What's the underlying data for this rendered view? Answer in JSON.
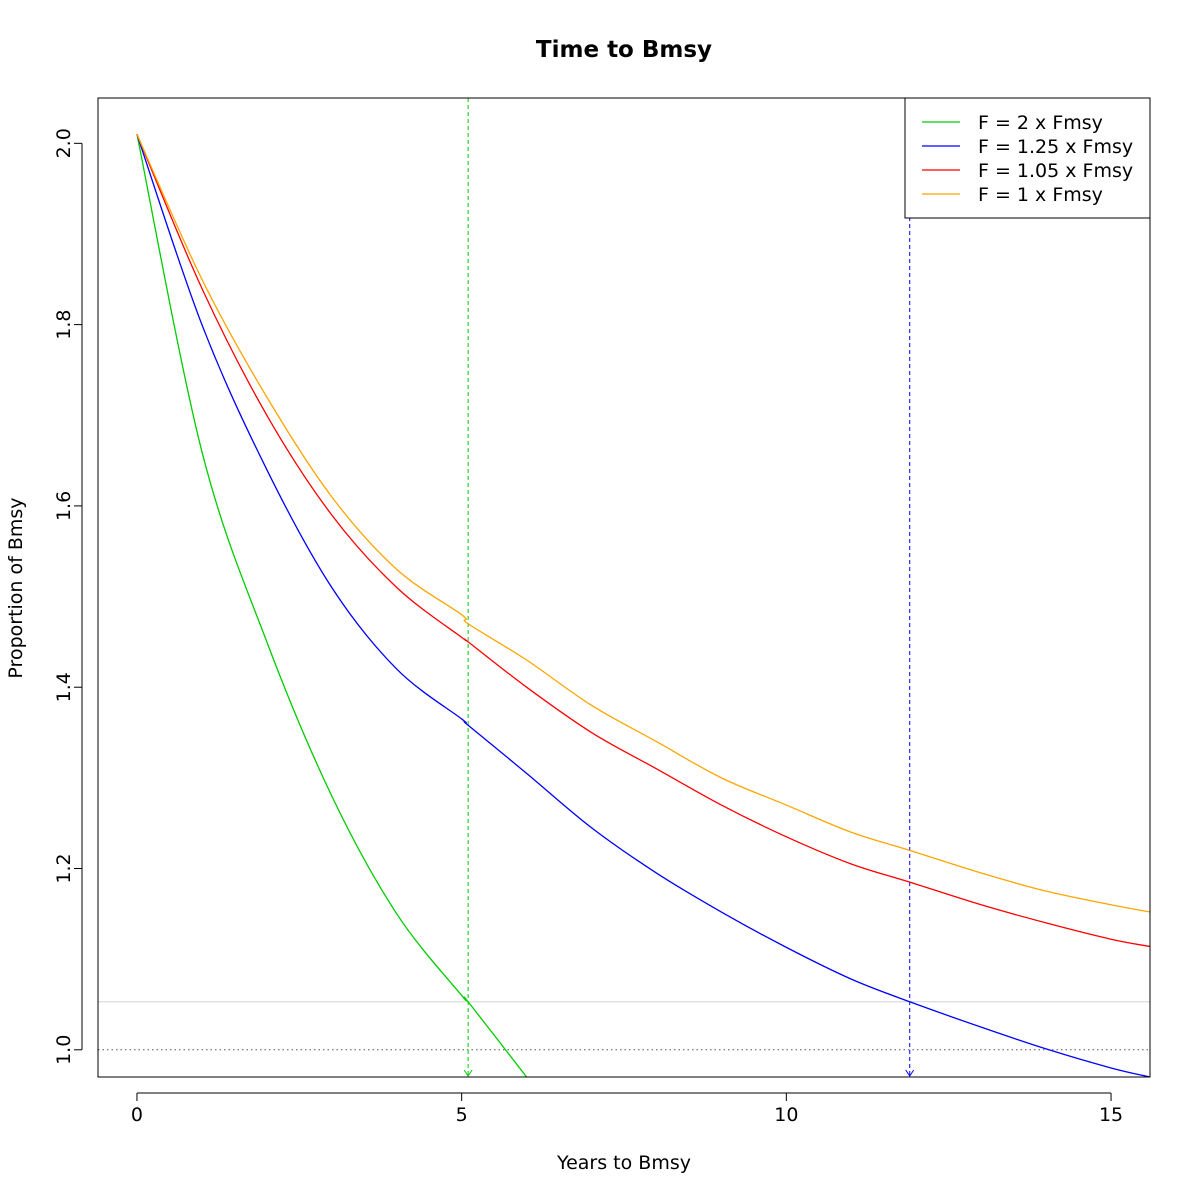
{
  "chart_data": {
    "type": "line",
    "title": "Time to Bmsy",
    "xlabel": "Years to Bmsy",
    "ylabel": "Proportion of Bmsy",
    "xlim": [
      -0.6,
      15.6
    ],
    "ylim": [
      0.97,
      2.05
    ],
    "x_ticks": [
      0,
      5,
      10,
      15
    ],
    "x_tick_labels": [
      "0",
      "5",
      "10",
      "15"
    ],
    "y_ticks": [
      1.0,
      1.2,
      1.4,
      1.6,
      1.8,
      2.0
    ],
    "y_tick_labels": [
      "1.0",
      "1.2",
      "1.4",
      "1.6",
      "1.8",
      "2.0"
    ],
    "grid": false,
    "legend_position": "top-right",
    "x": [
      0,
      1,
      2,
      3,
      4,
      5,
      5.1,
      6,
      7,
      8,
      9,
      10,
      11,
      11.9,
      13,
      14,
      15,
      15.6
    ],
    "series": [
      {
        "name": "F = 2 x Fmsy",
        "color": "#00cd00",
        "values": [
          2.01,
          1.66,
          1.45,
          1.28,
          1.15,
          1.06,
          1.053,
          0.97,
          null,
          null,
          null,
          null,
          null,
          null,
          null,
          null,
          null,
          null
        ]
      },
      {
        "name": "F = 1.25 x Fmsy",
        "color": "#0000ff",
        "values": [
          2.01,
          1.8,
          1.64,
          1.51,
          1.42,
          1.365,
          1.358,
          1.305,
          1.245,
          1.195,
          1.152,
          1.113,
          1.078,
          1.053,
          1.025,
          1.001,
          0.98,
          0.97
        ]
      },
      {
        "name": "F = 1.05 x Fmsy",
        "color": "#ff0000",
        "values": [
          2.01,
          1.84,
          1.7,
          1.59,
          1.51,
          1.455,
          1.45,
          1.4,
          1.35,
          1.31,
          1.27,
          1.235,
          1.205,
          1.185,
          1.16,
          1.14,
          1.122,
          1.114
        ]
      },
      {
        "name": "F = 1 x Fmsy",
        "color": "#ffa500",
        "values": [
          2.01,
          1.85,
          1.72,
          1.61,
          1.53,
          1.48,
          1.47,
          1.43,
          1.38,
          1.34,
          1.3,
          1.27,
          1.24,
          1.22,
          1.195,
          1.175,
          1.16,
          1.152
        ]
      }
    ],
    "reference_lines": [
      {
        "orientation": "horizontal",
        "value": 1.0,
        "style": "dotted",
        "color": "#555555"
      },
      {
        "orientation": "horizontal",
        "value": 1.053,
        "style": "solid",
        "color": "#d3d3d3"
      },
      {
        "orientation": "vertical",
        "value": 5.1,
        "style": "dashed",
        "color": "#00cd00"
      },
      {
        "orientation": "vertical",
        "value": 11.9,
        "style": "dashed",
        "color": "#0000ff"
      }
    ]
  }
}
